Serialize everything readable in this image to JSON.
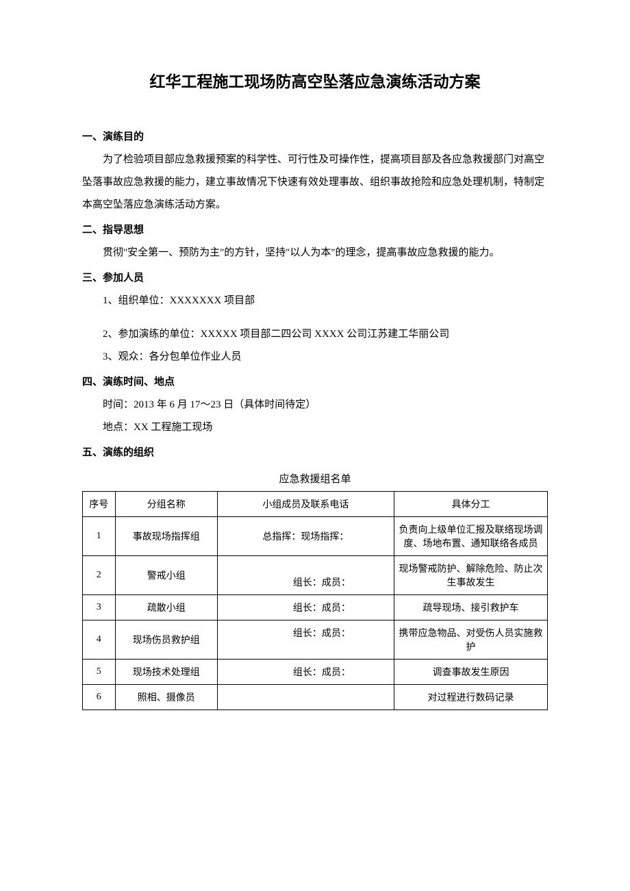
{
  "title": "红华工程施工现场防高空坠落应急演练活动方案",
  "sections": {
    "s1": {
      "heading": "一、演练目的",
      "body": "为了检验项目部应急救援预案的科学性、可行性及可操作性，提高项目部及各应急救援部门对高空坠落事故应急救援的能力，建立事故情况下快速有效处理事故、组织事故抢险和应急处理机制，特制定本高空坠落应急演练活动方案。"
    },
    "s2": {
      "heading": "二、指导思想",
      "body": "贯彻\"安全第一、预防为主\"的方针，坚持\"以人为本\"的理念，提高事故应急救援的能力。"
    },
    "s3": {
      "heading": "三、参加人员",
      "items": [
        "1、组织单位：XXXXXXX 项目部",
        "2、参加演练的单位：XXXXX 项目部二四公司 XXXX 公司江苏建工华丽公司",
        "3、观众：各分包单位作业人员"
      ]
    },
    "s4": {
      "heading": "四、演练时间、地点",
      "lines": [
        "时间：2013 年 6 月 17～23 日（具体时间待定）",
        "地点：XX 工程施工现场"
      ]
    },
    "s5": {
      "heading": "五、演练的组织",
      "table_caption": "应急救援组名单"
    }
  },
  "table": {
    "headers": [
      "序号",
      "分组名称",
      "小组成员及联系电话",
      "具体分工"
    ],
    "rows": [
      {
        "seq": "1",
        "name": "事故现场指挥组",
        "contact": "总指挥：现场指挥：",
        "duty": "负责向上级单位汇报及联络现场调度、场地布置、通知联络各成员"
      },
      {
        "seq": "2",
        "name": "警戒小组",
        "contact": "组长：成员：",
        "duty": "现场警戒防护、解除危险、防止次生事故发生"
      },
      {
        "seq": "3",
        "name": "疏散小组",
        "contact": "组长：成员：",
        "duty": "疏导现场、接引救护车"
      },
      {
        "seq": "4",
        "name": "现场伤员救护组",
        "contact": "组长：成员：",
        "duty": "携带应急物品、对受伤人员实施救护"
      },
      {
        "seq": "5",
        "name": "现场技术处理组",
        "contact": "组长：成员：",
        "duty": "调查事故发生原因"
      },
      {
        "seq": "6",
        "name": "照相、摄像员",
        "contact": "",
        "duty": "对过程进行数码记录"
      }
    ]
  },
  "colors": {
    "text": "#000000",
    "background": "#ffffff",
    "border": "#000000"
  },
  "fonts": {
    "body_size_pt": 15,
    "title_size_pt": 23
  }
}
